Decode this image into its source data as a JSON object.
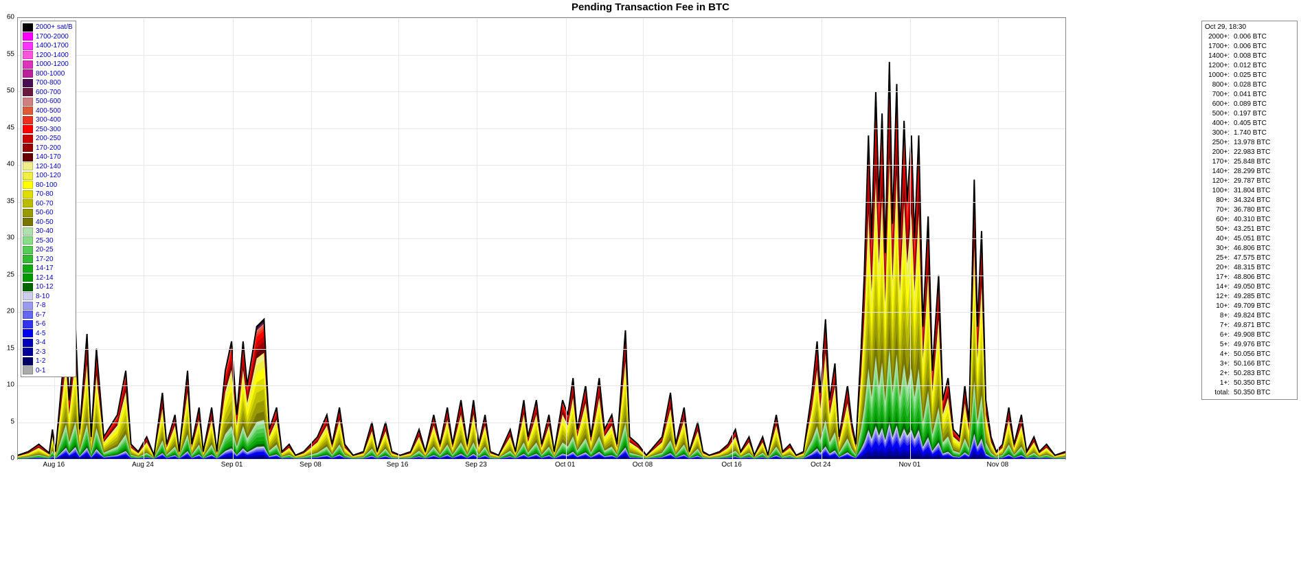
{
  "title": "Pending Transaction Fee in BTC",
  "chart": {
    "type": "stacked-area",
    "ylim": [
      0,
      60
    ],
    "ytick_step": 5,
    "yticks": [
      0,
      5,
      10,
      15,
      20,
      25,
      30,
      35,
      40,
      45,
      50,
      55,
      60
    ],
    "xticks": [
      "Aug 16",
      "Aug 24",
      "Sep 01",
      "Sep 08",
      "Sep 16",
      "Sep 23",
      "Oct 01",
      "Oct 08",
      "Oct 16",
      "Oct 24",
      "Nov 01",
      "Nov 08"
    ],
    "xtick_positions_pct": [
      3.5,
      12.0,
      20.5,
      28.0,
      36.3,
      43.8,
      52.3,
      59.7,
      68.2,
      76.7,
      85.2,
      93.6
    ],
    "background_color": "#ffffff",
    "grid_color": "#e8e8e8",
    "axis_color": "#888888",
    "label_fontsize": 10
  },
  "legend": {
    "font_color": "#0000bb",
    "items": [
      {
        "label": "2000+ sat/B",
        "color": "#000000"
      },
      {
        "label": "1700-2000",
        "color": "#ff00ff"
      },
      {
        "label": "1400-1700",
        "color": "#ff33ff"
      },
      {
        "label": "1200-1400",
        "color": "#ff55dd"
      },
      {
        "label": "1000-1200",
        "color": "#dd33bb"
      },
      {
        "label": "800-1000",
        "color": "#bb2299"
      },
      {
        "label": "700-800",
        "color": "#4a0d52"
      },
      {
        "label": "600-700",
        "color": "#6b1a3f"
      },
      {
        "label": "500-600",
        "color": "#d08080"
      },
      {
        "label": "400-500",
        "color": "#e05a3a"
      },
      {
        "label": "300-400",
        "color": "#ee3020"
      },
      {
        "label": "250-300",
        "color": "#ff0000"
      },
      {
        "label": "200-250",
        "color": "#cc0000"
      },
      {
        "label": "170-200",
        "color": "#990000"
      },
      {
        "label": "140-170",
        "color": "#660000"
      },
      {
        "label": "120-140",
        "color": "#eeee88"
      },
      {
        "label": "100-120",
        "color": "#eeee44"
      },
      {
        "label": "80-100",
        "color": "#ffff00"
      },
      {
        "label": "70-80",
        "color": "#dddd00"
      },
      {
        "label": "60-70",
        "color": "#bbbb00"
      },
      {
        "label": "50-60",
        "color": "#999900"
      },
      {
        "label": "40-50",
        "color": "#777700"
      },
      {
        "label": "30-40",
        "color": "#b0e0b0"
      },
      {
        "label": "25-30",
        "color": "#88dd88"
      },
      {
        "label": "20-25",
        "color": "#55cc55"
      },
      {
        "label": "17-20",
        "color": "#33bb33"
      },
      {
        "label": "14-17",
        "color": "#11aa11"
      },
      {
        "label": "12-14",
        "color": "#009900"
      },
      {
        "label": "10-12",
        "color": "#006600"
      },
      {
        "label": "8-10",
        "color": "#ccccee"
      },
      {
        "label": "7-8",
        "color": "#9999ee"
      },
      {
        "label": "6-7",
        "color": "#6666ee"
      },
      {
        "label": "5-6",
        "color": "#3333ee"
      },
      {
        "label": "4-5",
        "color": "#0000ee"
      },
      {
        "label": "3-4",
        "color": "#0000bb"
      },
      {
        "label": "2-3",
        "color": "#000099"
      },
      {
        "label": "1-2",
        "color": "#000066"
      },
      {
        "label": "0-1",
        "color": "#aaaaaa"
      }
    ]
  },
  "tooltip": {
    "datetime": "Oct 29, 18:30",
    "unit": "BTC",
    "rows": [
      {
        "k": "2000+:",
        "v": "0.006 BTC"
      },
      {
        "k": "1700+:",
        "v": "0.006 BTC"
      },
      {
        "k": "1400+:",
        "v": "0.008 BTC"
      },
      {
        "k": "1200+:",
        "v": "0.012 BTC"
      },
      {
        "k": "1000+:",
        "v": "0.025 BTC"
      },
      {
        "k": "800+:",
        "v": "0.028 BTC"
      },
      {
        "k": "700+:",
        "v": "0.041 BTC"
      },
      {
        "k": "600+:",
        "v": "0.089 BTC"
      },
      {
        "k": "500+:",
        "v": "0.197 BTC"
      },
      {
        "k": "400+:",
        "v": "0.405 BTC"
      },
      {
        "k": "300+:",
        "v": "1.740 BTC"
      },
      {
        "k": "250+:",
        "v": "13.978 BTC"
      },
      {
        "k": "200+:",
        "v": "22.983 BTC"
      },
      {
        "k": "170+:",
        "v": "25.848 BTC"
      },
      {
        "k": "140+:",
        "v": "28.299 BTC"
      },
      {
        "k": "120+:",
        "v": "29.787 BTC"
      },
      {
        "k": "100+:",
        "v": "31.804 BTC"
      },
      {
        "k": "80+:",
        "v": "34.324 BTC"
      },
      {
        "k": "70+:",
        "v": "36.780 BTC"
      },
      {
        "k": "60+:",
        "v": "40.310 BTC"
      },
      {
        "k": "50+:",
        "v": "43.251 BTC"
      },
      {
        "k": "40+:",
        "v": "45.051 BTC"
      },
      {
        "k": "30+:",
        "v": "46.806 BTC"
      },
      {
        "k": "25+:",
        "v": "47.575 BTC"
      },
      {
        "k": "20+:",
        "v": "48.315 BTC"
      },
      {
        "k": "17+:",
        "v": "48.806 BTC"
      },
      {
        "k": "14+:",
        "v": "49.050 BTC"
      },
      {
        "k": "12+:",
        "v": "49.285 BTC"
      },
      {
        "k": "10+:",
        "v": "49.709 BTC"
      },
      {
        "k": "8+:",
        "v": "49.824 BTC"
      },
      {
        "k": "7+:",
        "v": "49.871 BTC"
      },
      {
        "k": "6+:",
        "v": "49.908 BTC"
      },
      {
        "k": "5+:",
        "v": "49.976 BTC"
      },
      {
        "k": "4+:",
        "v": "50.056 BTC"
      },
      {
        "k": "3+:",
        "v": "50.166 BTC"
      },
      {
        "k": "2+:",
        "v": "50.283 BTC"
      },
      {
        "k": "1+:",
        "v": "50.350 BTC"
      },
      {
        "k": "total:",
        "v": "50.350 BTC"
      }
    ]
  },
  "series_envelope_points": [
    {
      "x": 0,
      "top": 0.5
    },
    {
      "x": 1,
      "top": 1.0
    },
    {
      "x": 2,
      "top": 2.0
    },
    {
      "x": 3,
      "top": 0.8
    },
    {
      "x": 3.3,
      "top": 4
    },
    {
      "x": 3.6,
      "top": 1
    },
    {
      "x": 4.6,
      "top": 17
    },
    {
      "x": 4.9,
      "top": 8
    },
    {
      "x": 5.5,
      "top": 18
    },
    {
      "x": 5.9,
      "top": 4
    },
    {
      "x": 6.6,
      "top": 17
    },
    {
      "x": 7.0,
      "top": 3
    },
    {
      "x": 7.5,
      "top": 15
    },
    {
      "x": 8.2,
      "top": 3
    },
    {
      "x": 9.5,
      "top": 6
    },
    {
      "x": 10.3,
      "top": 12
    },
    {
      "x": 10.8,
      "top": 2
    },
    {
      "x": 11.5,
      "top": 1
    },
    {
      "x": 12.3,
      "top": 3
    },
    {
      "x": 13.0,
      "top": 0.5
    },
    {
      "x": 13.8,
      "top": 9
    },
    {
      "x": 14.2,
      "top": 2
    },
    {
      "x": 15.0,
      "top": 6
    },
    {
      "x": 15.4,
      "top": 1
    },
    {
      "x": 16.2,
      "top": 12
    },
    {
      "x": 16.6,
      "top": 2
    },
    {
      "x": 17.3,
      "top": 7
    },
    {
      "x": 17.7,
      "top": 1
    },
    {
      "x": 18.5,
      "top": 7
    },
    {
      "x": 19.0,
      "top": 1
    },
    {
      "x": 19.8,
      "top": 12
    },
    {
      "x": 20.4,
      "top": 16
    },
    {
      "x": 20.9,
      "top": 6
    },
    {
      "x": 21.5,
      "top": 16
    },
    {
      "x": 21.9,
      "top": 10
    },
    {
      "x": 22.8,
      "top": 18
    },
    {
      "x": 23.5,
      "top": 19
    },
    {
      "x": 24.0,
      "top": 4
    },
    {
      "x": 24.7,
      "top": 7
    },
    {
      "x": 25.2,
      "top": 1
    },
    {
      "x": 25.9,
      "top": 2
    },
    {
      "x": 26.5,
      "top": 0.5
    },
    {
      "x": 27.3,
      "top": 1
    },
    {
      "x": 28.6,
      "top": 3
    },
    {
      "x": 29.5,
      "top": 6
    },
    {
      "x": 30.0,
      "top": 2
    },
    {
      "x": 30.7,
      "top": 7
    },
    {
      "x": 31.2,
      "top": 2
    },
    {
      "x": 32.0,
      "top": 0.5
    },
    {
      "x": 33.0,
      "top": 1
    },
    {
      "x": 33.8,
      "top": 5
    },
    {
      "x": 34.3,
      "top": 1
    },
    {
      "x": 35.1,
      "top": 5
    },
    {
      "x": 35.7,
      "top": 1
    },
    {
      "x": 36.5,
      "top": 0.5
    },
    {
      "x": 37.5,
      "top": 1
    },
    {
      "x": 38.3,
      "top": 4
    },
    {
      "x": 38.9,
      "top": 1
    },
    {
      "x": 39.7,
      "top": 6
    },
    {
      "x": 40.3,
      "top": 2
    },
    {
      "x": 41.0,
      "top": 7
    },
    {
      "x": 41.5,
      "top": 2
    },
    {
      "x": 42.3,
      "top": 8
    },
    {
      "x": 42.9,
      "top": 2
    },
    {
      "x": 43.5,
      "top": 8
    },
    {
      "x": 44.0,
      "top": 2
    },
    {
      "x": 44.6,
      "top": 6
    },
    {
      "x": 45.1,
      "top": 1
    },
    {
      "x": 45.9,
      "top": 0.5
    },
    {
      "x": 47.0,
      "top": 4
    },
    {
      "x": 47.5,
      "top": 1
    },
    {
      "x": 48.3,
      "top": 8
    },
    {
      "x": 48.7,
      "top": 3
    },
    {
      "x": 49.5,
      "top": 8
    },
    {
      "x": 50.0,
      "top": 2
    },
    {
      "x": 50.7,
      "top": 6
    },
    {
      "x": 51.2,
      "top": 1
    },
    {
      "x": 52.0,
      "top": 8
    },
    {
      "x": 52.5,
      "top": 6
    },
    {
      "x": 53.0,
      "top": 11
    },
    {
      "x": 53.4,
      "top": 4
    },
    {
      "x": 54.2,
      "top": 10
    },
    {
      "x": 54.7,
      "top": 3
    },
    {
      "x": 55.5,
      "top": 11
    },
    {
      "x": 56.0,
      "top": 4
    },
    {
      "x": 56.7,
      "top": 6
    },
    {
      "x": 57.2,
      "top": 2
    },
    {
      "x": 58.0,
      "top": 17.5
    },
    {
      "x": 58.4,
      "top": 3
    },
    {
      "x": 59.2,
      "top": 2
    },
    {
      "x": 60.0,
      "top": 0.5
    },
    {
      "x": 61.5,
      "top": 3
    },
    {
      "x": 62.3,
      "top": 9
    },
    {
      "x": 62.8,
      "top": 2
    },
    {
      "x": 63.6,
      "top": 7
    },
    {
      "x": 64.1,
      "top": 1
    },
    {
      "x": 64.9,
      "top": 5
    },
    {
      "x": 65.4,
      "top": 1
    },
    {
      "x": 66.0,
      "top": 0.5
    },
    {
      "x": 67.0,
      "top": 1
    },
    {
      "x": 67.8,
      "top": 2
    },
    {
      "x": 68.5,
      "top": 4
    },
    {
      "x": 69.0,
      "top": 1
    },
    {
      "x": 69.8,
      "top": 3
    },
    {
      "x": 70.3,
      "top": 0.5
    },
    {
      "x": 71.1,
      "top": 3
    },
    {
      "x": 71.6,
      "top": 0.5
    },
    {
      "x": 72.4,
      "top": 6
    },
    {
      "x": 73.0,
      "top": 1
    },
    {
      "x": 73.7,
      "top": 2
    },
    {
      "x": 74.3,
      "top": 0.5
    },
    {
      "x": 75.0,
      "top": 1
    },
    {
      "x": 75.8,
      "top": 9
    },
    {
      "x": 76.3,
      "top": 16
    },
    {
      "x": 76.6,
      "top": 9
    },
    {
      "x": 77.1,
      "top": 19
    },
    {
      "x": 77.5,
      "top": 8
    },
    {
      "x": 78.0,
      "top": 13
    },
    {
      "x": 78.4,
      "top": 3
    },
    {
      "x": 79.2,
      "top": 10
    },
    {
      "x": 79.6,
      "top": 5
    },
    {
      "x": 80.0,
      "top": 2
    },
    {
      "x": 80.5,
      "top": 15
    },
    {
      "x": 80.8,
      "top": 25
    },
    {
      "x": 81.2,
      "top": 44
    },
    {
      "x": 81.5,
      "top": 30
    },
    {
      "x": 81.9,
      "top": 50
    },
    {
      "x": 82.2,
      "top": 35
    },
    {
      "x": 82.5,
      "top": 47
    },
    {
      "x": 82.8,
      "top": 28
    },
    {
      "x": 83.2,
      "top": 54
    },
    {
      "x": 83.5,
      "top": 32
    },
    {
      "x": 83.9,
      "top": 51
    },
    {
      "x": 84.2,
      "top": 30
    },
    {
      "x": 84.6,
      "top": 46
    },
    {
      "x": 84.9,
      "top": 35
    },
    {
      "x": 85.3,
      "top": 44
    },
    {
      "x": 85.6,
      "top": 30
    },
    {
      "x": 86.0,
      "top": 44
    },
    {
      "x": 86.4,
      "top": 18
    },
    {
      "x": 86.9,
      "top": 33
    },
    {
      "x": 87.3,
      "top": 12
    },
    {
      "x": 87.9,
      "top": 25
    },
    {
      "x": 88.3,
      "top": 8
    },
    {
      "x": 88.8,
      "top": 11
    },
    {
      "x": 89.3,
      "top": 4
    },
    {
      "x": 89.9,
      "top": 3
    },
    {
      "x": 90.4,
      "top": 10
    },
    {
      "x": 90.8,
      "top": 5
    },
    {
      "x": 91.3,
      "top": 38
    },
    {
      "x": 91.6,
      "top": 18
    },
    {
      "x": 92.0,
      "top": 31
    },
    {
      "x": 92.4,
      "top": 8
    },
    {
      "x": 92.9,
      "top": 3
    },
    {
      "x": 93.4,
      "top": 1
    },
    {
      "x": 94.0,
      "top": 2
    },
    {
      "x": 94.6,
      "top": 7
    },
    {
      "x": 95.1,
      "top": 2
    },
    {
      "x": 95.8,
      "top": 6
    },
    {
      "x": 96.3,
      "top": 1
    },
    {
      "x": 97.0,
      "top": 3
    },
    {
      "x": 97.5,
      "top": 1
    },
    {
      "x": 98.2,
      "top": 2
    },
    {
      "x": 99.0,
      "top": 0.5
    },
    {
      "x": 100,
      "top": 1
    }
  ],
  "layer_ratios": [
    {
      "color": "#aaaaaa",
      "r": 0.0
    },
    {
      "color": "#000066",
      "r": 0.01
    },
    {
      "color": "#000099",
      "r": 0.02
    },
    {
      "color": "#0000bb",
      "r": 0.03
    },
    {
      "color": "#0000ee",
      "r": 0.05
    },
    {
      "color": "#3333ee",
      "r": 0.06
    },
    {
      "color": "#6666ee",
      "r": 0.07
    },
    {
      "color": "#9999ee",
      "r": 0.08
    },
    {
      "color": "#ccccee",
      "r": 0.09
    },
    {
      "color": "#006600",
      "r": 0.11
    },
    {
      "color": "#009900",
      "r": 0.13
    },
    {
      "color": "#11aa11",
      "r": 0.16
    },
    {
      "color": "#33bb33",
      "r": 0.19
    },
    {
      "color": "#55cc55",
      "r": 0.22
    },
    {
      "color": "#88dd88",
      "r": 0.25
    },
    {
      "color": "#b0e0b0",
      "r": 0.28
    },
    {
      "color": "#777700",
      "r": 0.34
    },
    {
      "color": "#999900",
      "r": 0.42
    },
    {
      "color": "#bbbb00",
      "r": 0.5
    },
    {
      "color": "#dddd00",
      "r": 0.58
    },
    {
      "color": "#ffff00",
      "r": 0.65
    },
    {
      "color": "#eeee44",
      "r": 0.71
    },
    {
      "color": "#eeee88",
      "r": 0.76
    },
    {
      "color": "#660000",
      "r": 0.8
    },
    {
      "color": "#990000",
      "r": 0.84
    },
    {
      "color": "#cc0000",
      "r": 0.88
    },
    {
      "color": "#ff0000",
      "r": 0.92
    },
    {
      "color": "#ee3020",
      "r": 0.94
    },
    {
      "color": "#e05a3a",
      "r": 0.96
    },
    {
      "color": "#d08080",
      "r": 0.97
    },
    {
      "color": "#6b1a3f",
      "r": 0.98
    },
    {
      "color": "#4a0d52",
      "r": 0.99
    },
    {
      "color": "#000000",
      "r": 1.0
    }
  ]
}
